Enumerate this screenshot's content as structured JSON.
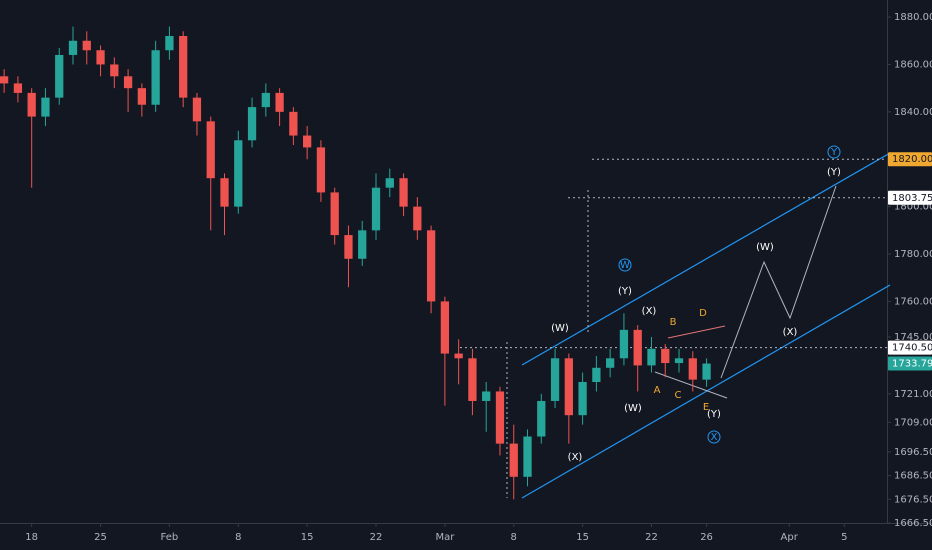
{
  "chart_data": {
    "type": "candlestick",
    "colors": {
      "up": "#26a69a",
      "down": "#ef5350",
      "background": "#131722",
      "text": "#b2b5be",
      "channel": "#2196f3"
    },
    "x": [
      -2,
      -1,
      0,
      1,
      2,
      3,
      4,
      5,
      6,
      7,
      8,
      9,
      10,
      11,
      12,
      13,
      14,
      15,
      16,
      17,
      18,
      19,
      20,
      21,
      22,
      23,
      24,
      25,
      26,
      27,
      28,
      29,
      30,
      31,
      32,
      33,
      34,
      35,
      36,
      37,
      38,
      39,
      40,
      41,
      42,
      43,
      44,
      45,
      46,
      47,
      48,
      49
    ],
    "open": [
      1855,
      1852,
      1848,
      1838,
      1846,
      1864,
      1870,
      1866,
      1860,
      1855,
      1850,
      1843,
      1866,
      1872,
      1846,
      1836,
      1812,
      1800,
      1828,
      1842,
      1848,
      1840,
      1830,
      1825,
      1806,
      1788,
      1778,
      1790,
      1808,
      1812,
      1800,
      1790,
      1760,
      1738,
      1736,
      1718,
      1722,
      1700,
      1686,
      1703,
      1718,
      1736,
      1712,
      1726,
      1732,
      1736,
      1748,
      1733,
      1740,
      1734,
      1736,
      1727
    ],
    "high": [
      1858,
      1855,
      1850,
      1850,
      1867,
      1876,
      1874,
      1868,
      1863,
      1858,
      1852,
      1870,
      1876,
      1874,
      1848,
      1838,
      1814,
      1832,
      1846,
      1852,
      1850,
      1842,
      1834,
      1828,
      1808,
      1792,
      1794,
      1814,
      1816,
      1814,
      1804,
      1792,
      1762,
      1744,
      1740,
      1726,
      1724,
      1708,
      1706,
      1721,
      1740,
      1738,
      1730,
      1737,
      1740,
      1755,
      1750,
      1745,
      1742,
      1740,
      1739,
      1736
    ],
    "low": [
      1848,
      1844,
      1808,
      1834,
      1843,
      1860,
      1860,
      1855,
      1850,
      1840,
      1838,
      1840,
      1862,
      1842,
      1830,
      1790,
      1788,
      1797,
      1825,
      1838,
      1834,
      1826,
      1820,
      1802,
      1784,
      1766,
      1775,
      1786,
      1804,
      1796,
      1786,
      1755,
      1716,
      1725,
      1712,
      1705,
      1695,
      1676.5,
      1682,
      1700,
      1715,
      1700,
      1708,
      1722,
      1728,
      1733,
      1722,
      1730,
      1728,
      1730,
      1722,
      1724
    ],
    "close": [
      1852,
      1848,
      1838,
      1846,
      1864,
      1870,
      1866,
      1860,
      1855,
      1850,
      1843,
      1866,
      1872,
      1846,
      1836,
      1812,
      1800,
      1828,
      1842,
      1848,
      1840,
      1830,
      1825,
      1806,
      1788,
      1778,
      1790,
      1808,
      1812,
      1800,
      1790,
      1760,
      1738,
      1736,
      1718,
      1722,
      1700,
      1686,
      1703,
      1718,
      1736,
      1712,
      1726,
      1732,
      1736,
      1748,
      1733,
      1740,
      1734,
      1736,
      1727,
      1733.79
    ],
    "xlim": [
      -2.3,
      62.1
    ],
    "xticks": [
      {
        "value": 0,
        "label": "18"
      },
      {
        "value": 5,
        "label": "25"
      },
      {
        "value": 10,
        "label": "Feb"
      },
      {
        "value": 15,
        "label": "8"
      },
      {
        "value": 20,
        "label": "15"
      },
      {
        "value": 25,
        "label": "22"
      },
      {
        "value": 30,
        "label": "Mar"
      },
      {
        "value": 35,
        "label": "8"
      },
      {
        "value": 40,
        "label": "15"
      },
      {
        "value": 45,
        "label": "22"
      },
      {
        "value": 49,
        "label": "26"
      },
      {
        "value": 55,
        "label": "Apr"
      },
      {
        "value": 59,
        "label": "5"
      }
    ],
    "ylim": [
      1666.5,
      1887.2
    ],
    "yticks": [
      {
        "value": 1880,
        "label": "1880.00"
      },
      {
        "value": 1860,
        "label": "1860.00"
      },
      {
        "value": 1840,
        "label": "1840.00"
      },
      {
        "value": 1800,
        "label": "1800.00"
      },
      {
        "value": 1780,
        "label": "1780.00"
      },
      {
        "value": 1760,
        "label": "1760.00"
      },
      {
        "value": 1745,
        "label": "1745.00"
      },
      {
        "value": 1721,
        "label": "1721.00"
      },
      {
        "value": 1709,
        "label": "1709.00"
      },
      {
        "value": 1696.5,
        "label": "1696.50"
      },
      {
        "value": 1686.5,
        "label": "1686.50"
      },
      {
        "value": 1676.5,
        "label": "1676.50"
      },
      {
        "value": 1666.5,
        "label": "1666.50"
      }
    ],
    "levels": [
      {
        "value": 1820,
        "label": "1820.00",
        "color": "#f0a830",
        "text_color": "#131722"
      },
      {
        "value": 1803.75,
        "label": "1803.75",
        "color": "#ffffff",
        "text_color": "#131722"
      },
      {
        "value": 1740.5,
        "label": "1740.50",
        "color": "#ffffff",
        "text_color": "#131722"
      },
      {
        "value": 1733.79,
        "label": "1733.79",
        "color": "#26a69a",
        "text_color": "#ffffff"
      }
    ],
    "wave_labels": [
      {
        "text": "(W)",
        "color": "#ffffff"
      },
      {
        "text": "(X)",
        "color": "#ffffff"
      },
      {
        "text": "(Y)",
        "color": "#ffffff"
      },
      {
        "text": "(W)",
        "color": "#ffffff"
      },
      {
        "text": "(X)",
        "color": "#ffffff"
      },
      {
        "text": "(Y)",
        "color": "#ffffff"
      },
      {
        "text": "A",
        "color": "#f0a830"
      },
      {
        "text": "B",
        "color": "#f0a830"
      },
      {
        "text": "C",
        "color": "#f0a830"
      },
      {
        "text": "D",
        "color": "#f0a830"
      },
      {
        "text": "E",
        "color": "#f0a830"
      },
      {
        "text": "(W)",
        "color": "#ffffff"
      },
      {
        "text": "(X)",
        "color": "#ffffff"
      },
      {
        "text": "(Y)",
        "color": "#ffffff"
      },
      {
        "text": "W",
        "color": "#2196f3",
        "circled": true
      },
      {
        "text": "X",
        "color": "#2196f3",
        "circled": true
      },
      {
        "text": "Y",
        "color": "#2196f3",
        "circled": true
      }
    ]
  }
}
